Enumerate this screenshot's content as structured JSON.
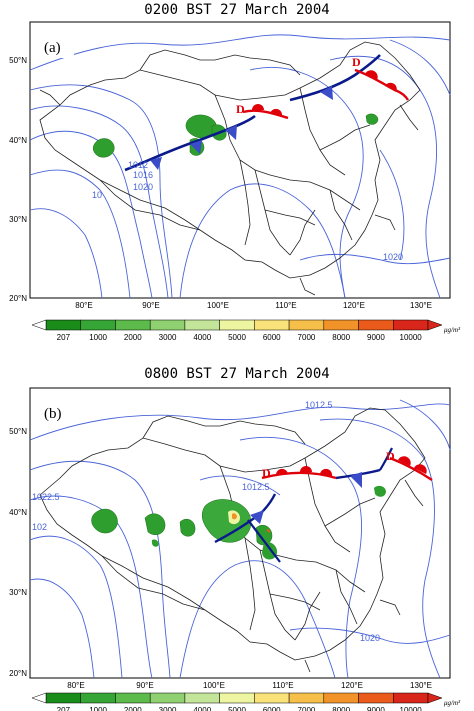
{
  "panels": [
    {
      "title": "0200 BST 27 March 2004",
      "label": "(a)",
      "front_label_1": "D",
      "front_label_2": "D",
      "isobar_labels": [
        "1012",
        "1016",
        "1020",
        "1020",
        "10"
      ],
      "lat_labels": [
        "50°N",
        "40°N",
        "30°N",
        "20°N"
      ],
      "lon_labels": [
        "80°E",
        "90°E",
        "100°E",
        "110°E",
        "120°E",
        "130°E"
      ]
    },
    {
      "title": "0800 BST 27 March 2004",
      "label": "(b)",
      "front_label_1": "D",
      "front_label_2": "D",
      "isobar_labels": [
        "1012.5",
        "1022.5",
        "1012.5",
        "102",
        "1020"
      ],
      "lat_labels": [
        "50°N",
        "40°N",
        "30°N",
        "20°N"
      ],
      "lon_labels": [
        "80°E",
        "90°E",
        "100°E",
        "110°E",
        "120°E",
        "130°E"
      ]
    }
  ],
  "colorbar": {
    "ticks": [
      "207",
      "1000",
      "2000",
      "3000",
      "4000",
      "5000",
      "6000",
      "7000",
      "8000",
      "9000",
      "10000"
    ],
    "unit": "μg/m³",
    "colors": [
      "#1a8c1a",
      "#35a535",
      "#5cbb4a",
      "#8fd170",
      "#c2e59a",
      "#eef5a0",
      "#f9e27a",
      "#f6bf4a",
      "#f2932a",
      "#ea5a1a",
      "#d8261a"
    ]
  },
  "colors": {
    "isobar": "#4a64d8",
    "cold_front": "#0a1a8a",
    "warm_front": "#e0000a",
    "dust": "#2e9e2e"
  }
}
